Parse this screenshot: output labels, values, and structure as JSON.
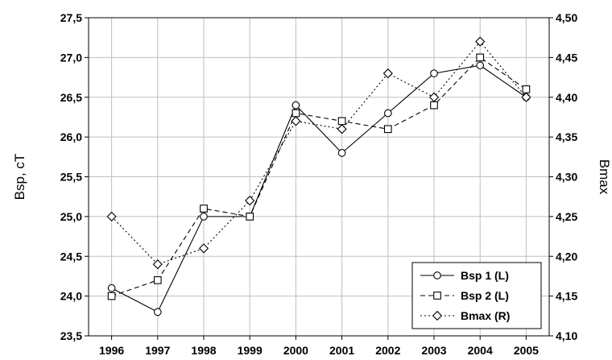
{
  "chart_data": {
    "type": "line",
    "title": "",
    "xlabel": "",
    "ylabel": "Bsp, cT",
    "y2label": "Bmax",
    "x": [
      1996,
      1997,
      1998,
      1999,
      2000,
      2001,
      2002,
      2003,
      2004,
      2005
    ],
    "x_tick_labels": [
      "1996",
      "1997",
      "1998",
      "1999",
      "2000",
      "2001",
      "2002",
      "2003",
      "2004",
      "2005"
    ],
    "ylim": [
      23.5,
      27.5
    ],
    "y_tick_labels": [
      "23,5",
      "24,0",
      "24,5",
      "25,0",
      "25,5",
      "26,0",
      "26,5",
      "27,0",
      "27,5"
    ],
    "y2lim": [
      4.1,
      4.5
    ],
    "y2_tick_labels": [
      "4,10",
      "4,15",
      "4,20",
      "4,25",
      "4,30",
      "4,35",
      "4,40",
      "4,45",
      "4,50"
    ],
    "grid": true,
    "legend_position": "bottom-right",
    "series": [
      {
        "name": "Bsp 1 (L)",
        "axis": "left",
        "marker": "circle",
        "line_style": "solid",
        "values": [
          24.1,
          23.8,
          25.0,
          25.0,
          26.4,
          25.8,
          26.3,
          26.8,
          26.9,
          26.5
        ]
      },
      {
        "name": "Bsp 2 (L)",
        "axis": "left",
        "marker": "square",
        "line_style": "dashed",
        "values": [
          24.0,
          24.2,
          25.1,
          25.0,
          26.3,
          26.2,
          26.1,
          26.4,
          27.0,
          26.6
        ]
      },
      {
        "name": "Bmax (R)",
        "axis": "right",
        "marker": "diamond",
        "line_style": "dotted",
        "values": [
          4.25,
          4.19,
          4.21,
          4.27,
          4.37,
          4.36,
          4.43,
          4.4,
          4.47,
          4.4
        ]
      }
    ]
  }
}
